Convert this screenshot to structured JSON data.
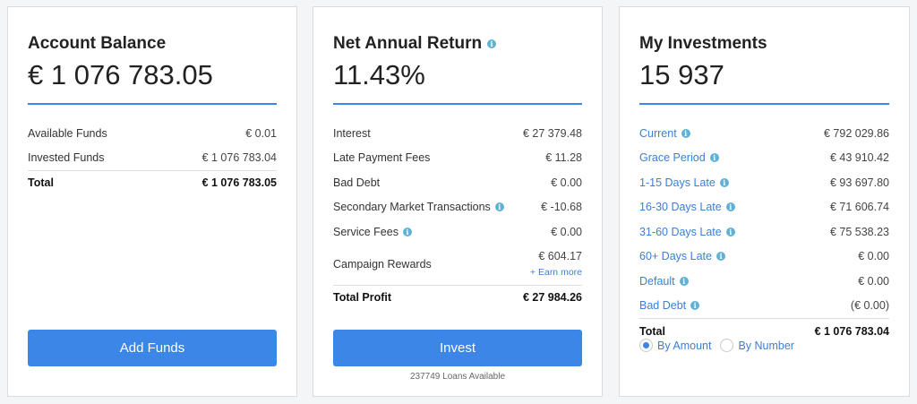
{
  "balance": {
    "title": "Account Balance",
    "value": "€ 1 076 783.05",
    "rows": [
      {
        "label": "Available Funds",
        "value": "€ 0.01"
      },
      {
        "label": "Invested Funds",
        "value": "€ 1 076 783.04"
      }
    ],
    "total_label": "Total",
    "total_value": "€ 1 076 783.05",
    "button_label": "Add Funds"
  },
  "net_return": {
    "title": "Net Annual Return",
    "value": "11.43%",
    "rows": [
      {
        "label": "Interest",
        "value": "€ 27 379.48"
      },
      {
        "label": "Late Payment Fees",
        "value": "€ 11.28"
      },
      {
        "label": "Bad Debt",
        "value": "€ 0.00"
      },
      {
        "label": "Secondary Market Transactions",
        "value": "€ -10.68"
      },
      {
        "label": "Service Fees",
        "value": "€ 0.00"
      },
      {
        "label": "Campaign Rewards",
        "value": "€ 604.17"
      }
    ],
    "earn_more": "+ Earn more",
    "total_label": "Total Profit",
    "total_value": "€ 27 984.26",
    "button_label": "Invest",
    "loans_available": "237749 Loans Available"
  },
  "investments": {
    "title": "My Investments",
    "value": "15 937",
    "rows": [
      {
        "label": "Current",
        "value": "€ 792 029.86"
      },
      {
        "label": "Grace Period",
        "value": "€ 43 910.42"
      },
      {
        "label": "1-15 Days Late",
        "value": "€ 93 697.80"
      },
      {
        "label": "16-30 Days Late",
        "value": "€ 71 606.74"
      },
      {
        "label": "31-60 Days Late",
        "value": "€ 75 538.23"
      },
      {
        "label": "60+ Days Late",
        "value": "€ 0.00"
      },
      {
        "label": "Default",
        "value": "€ 0.00"
      },
      {
        "label": "Bad Debt",
        "value": "(€ 0.00)"
      }
    ],
    "total_label": "Total",
    "total_value": "€ 1 076 783.04",
    "radio_amount": "By Amount",
    "radio_number": "By Number",
    "selected": "By Amount"
  },
  "icons": {
    "info": "info-icon"
  },
  "colors": {
    "accent": "#3b86e6",
    "link": "#3b7fd6",
    "info": "#5fb2d6"
  }
}
